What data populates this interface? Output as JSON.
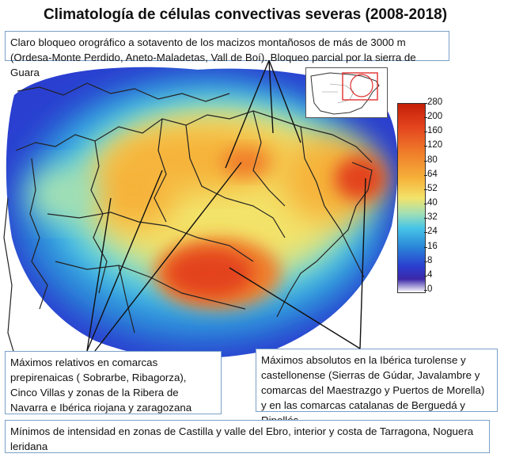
{
  "title": "Climatología de células convectivas severas (2008-2018)",
  "callouts": {
    "orographic": "Claro bloqueo orográfico a sotavento de los macizos montañosos de más de 3000 m (Ordesa-Monte Perdido, Aneto-Maladetas, Vall de Boí). Bloqueo parcial por la sierra de Guara",
    "relative_max": "Máximos relativos en comarcas prepirenaicas ( Sobrarbe, Ribagorza), Cinco Villas y zonas de la Ribera de Navarra e Ibérica riojana y zaragozana",
    "absolute_max": "Máximos absolutos en la Ibérica turolense y castellonense (Sierras de Gúdar, Javalambre y comarcas del Maestrazgo y Puertos de Morella) y en las comarcas catalanas de Berguedá y Ripollés",
    "minimums": "Mínimos de intensidad en zonas de Castilla y valle del Ebro, interior y costa de Tarragona, Noguera leridana"
  },
  "colorbar": {
    "ticks": [
      "280",
      "200",
      "160",
      "120",
      "80",
      "64",
      "52",
      "40",
      "32",
      "24",
      "16",
      "8",
      "4",
      "0"
    ]
  },
  "colors": {
    "high": "#c42008",
    "mid": "#f3e36a",
    "low": "#2a3fd0",
    "border": "#7aa0c8"
  }
}
